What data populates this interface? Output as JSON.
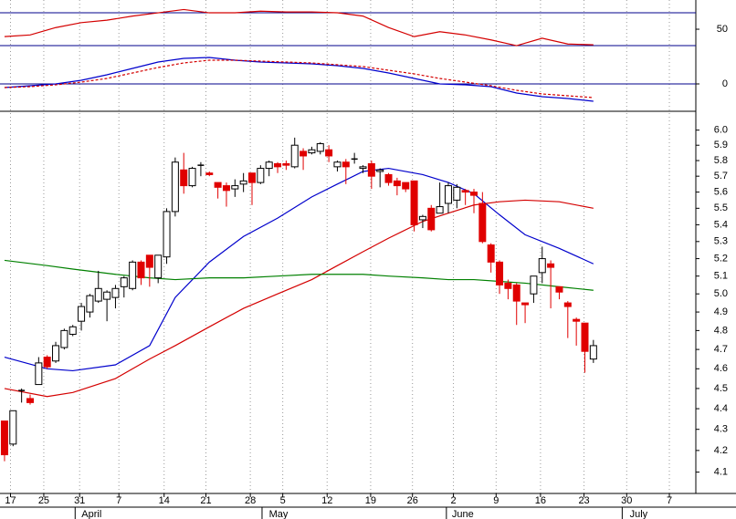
{
  "chart_data": [
    {
      "type": "line",
      "ylim": [
        7.8,
        85.6
      ],
      "yticks": [
        50
      ],
      "levels": [
        70,
        30
      ],
      "level_color": "#00008b",
      "x": [
        0,
        3,
        6,
        9,
        12,
        15,
        18,
        21,
        24,
        27,
        30,
        33,
        36,
        39,
        42,
        45,
        48,
        51,
        54,
        57,
        60,
        63,
        66,
        69
      ],
      "series": [
        {
          "color": "#d40000",
          "values": [
            41,
            43,
            52,
            58,
            61,
            66,
            70,
            74,
            70,
            70,
            72,
            71,
            71,
            70,
            66,
            52,
            41,
            47,
            43,
            37,
            30,
            39,
            32,
            31
          ]
        }
      ]
    },
    {
      "type": "line",
      "ylim": [
        -0.28,
        0.37
      ],
      "yticks": [
        0
      ],
      "levels": [
        0
      ],
      "level_color": "#00008b",
      "x": [
        0,
        3,
        6,
        9,
        12,
        15,
        18,
        21,
        24,
        27,
        30,
        33,
        36,
        39,
        42,
        45,
        48,
        51,
        54,
        57,
        60,
        63,
        66,
        69
      ],
      "series": [
        {
          "color": "#0000cc",
          "values": [
            -0.04,
            -0.02,
            0,
            0.04,
            0.1,
            0.17,
            0.24,
            0.28,
            0.29,
            0.26,
            0.24,
            0.23,
            0.22,
            0.2,
            0.17,
            0.12,
            0.06,
            0,
            -0.01,
            -0.03,
            -0.1,
            -0.14,
            -0.16,
            -0.19
          ]
        },
        {
          "color": "#d40000",
          "dashed": true,
          "values": [
            -0.04,
            -0.03,
            -0.01,
            0.02,
            0.06,
            0.12,
            0.18,
            0.23,
            0.26,
            0.26,
            0.25,
            0.24,
            0.23,
            0.21,
            0.19,
            0.15,
            0.11,
            0.06,
            0.02,
            -0.02,
            -0.07,
            -0.11,
            -0.13,
            -0.15
          ]
        }
      ]
    },
    {
      "type": "candlestick",
      "log_scale": true,
      "ylim": [
        4.09,
        6.09
      ],
      "yticks": [
        {
          "value": 4.1,
          "label": "4.1"
        },
        4.2,
        4.3,
        4.4,
        4.5,
        4.6,
        4.7,
        4.8,
        4.9,
        {
          "value": 5,
          "label": "5.0"
        },
        5.1,
        5.2,
        5.3,
        5.4,
        5.5,
        5.6,
        5.7,
        5.8,
        5.9,
        {
          "value": 6,
          "label": "6.0"
        }
      ],
      "xlim": [
        -0.53,
        81.0
      ],
      "xticks": [
        {
          "value": 0.7,
          "label": "17"
        },
        {
          "value": 4.6,
          "label": "25"
        },
        {
          "value": 8.8,
          "label": "31"
        },
        {
          "value": 13.4,
          "label": "7"
        },
        {
          "value": 18.7,
          "label": "14"
        },
        {
          "value": 23.6,
          "label": "21"
        },
        {
          "value": 28.8,
          "label": "28"
        },
        {
          "value": 32.6,
          "label": "5"
        },
        {
          "value": 37.8,
          "label": "12"
        },
        {
          "value": 42.9,
          "label": "19"
        },
        {
          "value": 47.8,
          "label": "26"
        },
        {
          "value": 52.6,
          "label": "2"
        },
        {
          "value": 57.6,
          "label": "9"
        },
        {
          "value": 62.8,
          "label": "16"
        },
        {
          "value": 67.9,
          "label": "23"
        },
        {
          "value": 72.9,
          "label": "30"
        },
        {
          "value": 77.9,
          "label": "7"
        }
      ],
      "months": [
        {
          "value": 10.2,
          "label": "April"
        },
        {
          "value": 32.1,
          "label": "May"
        },
        {
          "value": 53.7,
          "label": "June"
        },
        {
          "value": 74.3,
          "label": "July"
        }
      ],
      "up_color": "#ffffff",
      "down_color": "#e00000",
      "open": [
        4.34,
        4.23,
        4.49,
        4.45,
        4.52,
        4.66,
        4.64,
        4.71,
        4.78,
        4.85,
        4.9,
        4.96,
        4.97,
        4.98,
        5.04,
        5.03,
        5.18,
        5.22,
        5.09,
        5.21,
        5.48,
        5.74,
        5.64,
        5.77,
        5.72,
        5.66,
        5.64,
        5.62,
        5.65,
        5.72,
        5.66,
        5.75,
        5.78,
        5.78,
        5.76,
        5.86,
        5.85,
        5.86,
        5.87,
        5.76,
        5.79,
        5.81,
        5.75,
        5.78,
        5.73,
        5.71,
        5.67,
        5.66,
        5.67,
        5.43,
        5.5,
        5.47,
        5.53,
        5.55,
        5.61,
        5.6,
        5.53,
        5.28,
        5.18,
        5.06,
        5.05,
        4.95,
        5.0,
        5.12,
        5.17,
        5.04,
        4.95,
        4.86,
        4.84,
        4.65
      ],
      "high": [
        4.34,
        4.39,
        4.5,
        4.47,
        4.66,
        4.67,
        4.74,
        4.81,
        4.83,
        4.95,
        5.0,
        5.13,
        5.02,
        5.05,
        5.1,
        5.19,
        5.19,
        5.22,
        5.22,
        5.5,
        5.82,
        5.85,
        5.76,
        5.79,
        5.73,
        5.66,
        5.66,
        5.68,
        5.72,
        5.72,
        5.77,
        5.8,
        5.79,
        5.8,
        5.95,
        5.88,
        5.89,
        5.92,
        5.9,
        5.8,
        5.81,
        5.85,
        5.77,
        5.8,
        5.75,
        5.72,
        5.69,
        5.66,
        5.67,
        5.46,
        5.52,
        5.66,
        5.66,
        5.65,
        5.62,
        5.62,
        5.6,
        5.29,
        5.19,
        5.08,
        5.06,
        4.95,
        5.1,
        5.27,
        5.19,
        5.04,
        4.96,
        4.87,
        4.84,
        4.75
      ],
      "low": [
        4.15,
        4.22,
        4.43,
        4.42,
        4.52,
        4.6,
        4.63,
        4.7,
        4.77,
        4.8,
        4.87,
        4.95,
        4.85,
        4.92,
        4.98,
        5.02,
        5.05,
        5.04,
        5.06,
        5.17,
        5.45,
        5.59,
        5.63,
        5.7,
        5.7,
        5.56,
        5.51,
        5.57,
        5.6,
        5.52,
        5.65,
        5.7,
        5.72,
        5.74,
        5.75,
        5.74,
        5.84,
        5.84,
        5.79,
        5.73,
        5.65,
        5.78,
        5.72,
        5.62,
        5.63,
        5.64,
        5.58,
        5.6,
        5.36,
        5.38,
        5.36,
        5.47,
        5.47,
        5.5,
        5.52,
        5.47,
        5.29,
        5.12,
        5.0,
        4.97,
        4.83,
        4.84,
        4.95,
        5.06,
        4.92,
        4.97,
        4.76,
        4.72,
        4.58,
        4.63
      ],
      "close": [
        4.18,
        4.39,
        4.49,
        4.43,
        4.63,
        4.61,
        4.72,
        4.8,
        4.82,
        4.93,
        4.99,
        5.03,
        5.01,
        5.03,
        5.09,
        5.18,
        5.09,
        5.15,
        5.22,
        5.48,
        5.79,
        5.64,
        5.75,
        5.77,
        5.71,
        5.63,
        5.61,
        5.64,
        5.67,
        5.66,
        5.75,
        5.79,
        5.76,
        5.77,
        5.9,
        5.83,
        5.87,
        5.91,
        5.83,
        5.79,
        5.76,
        5.81,
        5.76,
        5.7,
        5.74,
        5.66,
        5.64,
        5.62,
        5.4,
        5.45,
        5.37,
        5.51,
        5.64,
        5.63,
        5.6,
        5.58,
        5.3,
        5.18,
        5.05,
        5.03,
        4.96,
        4.94,
        5.1,
        5.2,
        5.15,
        5.01,
        4.93,
        4.85,
        4.69,
        4.72
      ],
      "line_x": [
        0,
        5,
        8,
        13,
        17,
        20,
        24,
        28,
        32,
        36,
        39,
        42,
        45,
        49,
        52,
        55,
        58,
        61,
        65,
        69
      ],
      "series": [
        {
          "color": "#0000cc",
          "values": [
            4.66,
            4.6,
            4.59,
            4.62,
            4.72,
            4.98,
            5.18,
            5.33,
            5.44,
            5.57,
            5.65,
            5.73,
            5.75,
            5.71,
            5.66,
            5.59,
            5.46,
            5.34,
            5.26,
            5.17
          ]
        },
        {
          "color": "#d40000",
          "values": [
            4.5,
            4.46,
            4.48,
            4.55,
            4.65,
            4.72,
            4.82,
            4.92,
            5.0,
            5.08,
            5.16,
            5.24,
            5.32,
            5.42,
            5.47,
            5.52,
            5.54,
            5.55,
            5.54,
            5.5
          ]
        },
        {
          "color": "#008000",
          "values": [
            5.19,
            5.16,
            5.14,
            5.11,
            5.09,
            5.08,
            5.09,
            5.09,
            5.1,
            5.11,
            5.11,
            5.11,
            5.1,
            5.09,
            5.08,
            5.08,
            5.07,
            5.06,
            5.04,
            5.02
          ]
        }
      ]
    }
  ]
}
